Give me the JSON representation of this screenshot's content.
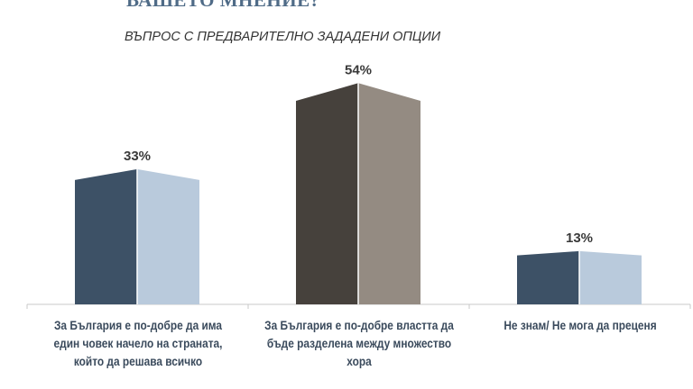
{
  "header": {
    "title": "ВАШЕТО МНЕНИЕ?",
    "subtitle": "ВЪПРОС С ПРЕДВАРИТЕЛНО ЗАДАДЕНИ ОПЦИИ"
  },
  "chart_data": {
    "type": "bar",
    "categories": [
      "За България е по-добре да има един човек начело на страната, който да решава всичко",
      "За България е по-добре властта да бъде разделена между множество хора",
      "Не знам/ Не мога да преценя"
    ],
    "values": [
      33,
      54,
      13
    ],
    "data_labels": [
      "33%",
      "54%",
      "13%"
    ],
    "ylim": [
      0,
      60
    ],
    "grid": false,
    "colors": [
      {
        "dark": "#3d5166",
        "light": "#b9cadc"
      },
      {
        "dark": "#46413c",
        "light": "#948b82"
      },
      {
        "dark": "#3d5166",
        "light": "#b9cadc"
      }
    ],
    "axis_color": "#c8c8c8",
    "label_color": "#3a4a5c"
  }
}
